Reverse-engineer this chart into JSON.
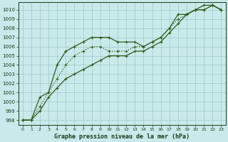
{
  "title": "Graphe pression niveau de la mer (hPa)",
  "x": [
    0,
    1,
    2,
    3,
    4,
    5,
    6,
    7,
    8,
    9,
    10,
    11,
    12,
    13,
    14,
    15,
    16,
    17,
    18,
    19,
    20,
    21,
    22,
    23
  ],
  "line_upper": [
    998.0,
    998.0,
    1000.5,
    1001.0,
    1004.0,
    1005.5,
    1006.0,
    1006.5,
    1007.0,
    1007.0,
    1007.0,
    1006.5,
    1006.5,
    1006.5,
    1006.0,
    1006.5,
    1007.0,
    1008.0,
    1009.5,
    1009.5,
    1010.0,
    1010.5,
    1010.5,
    1010.0
  ],
  "line_mid": [
    998.0,
    998.0,
    999.5,
    1001.0,
    1002.5,
    1004.0,
    1005.0,
    1005.5,
    1006.0,
    1006.0,
    1005.5,
    1005.5,
    1005.5,
    1006.0,
    1006.0,
    1006.5,
    1007.0,
    1008.0,
    1009.0,
    1009.5,
    1010.0,
    1010.0,
    1010.5,
    1010.0
  ],
  "line_lower": [
    998.0,
    998.0,
    999.0,
    1000.5,
    1001.5,
    1002.5,
    1003.0,
    1003.5,
    1004.0,
    1004.5,
    1005.0,
    1005.0,
    1005.0,
    1005.5,
    1005.5,
    1006.0,
    1006.5,
    1007.5,
    1008.5,
    1009.5,
    1010.0,
    1010.0,
    1010.5,
    1010.0
  ],
  "line_color": "#2d5a1b",
  "background_color": "#c8eaea",
  "grid_color": "#a0c8c8",
  "text_color": "#1a3a1a",
  "ylim": [
    997.5,
    1010.8
  ],
  "xlim": [
    -0.5,
    23.5
  ],
  "yticks": [
    998,
    999,
    1000,
    1001,
    1002,
    1003,
    1004,
    1005,
    1006,
    1007,
    1008,
    1009,
    1010
  ],
  "xticks": [
    0,
    1,
    2,
    3,
    4,
    5,
    6,
    7,
    8,
    9,
    10,
    11,
    12,
    13,
    14,
    15,
    16,
    17,
    18,
    19,
    20,
    21,
    22,
    23
  ],
  "ytick_fontsize": 5,
  "xtick_fontsize": 4.5,
  "xlabel_fontsize": 6,
  "marker_size": 3,
  "linewidth": 0.9
}
